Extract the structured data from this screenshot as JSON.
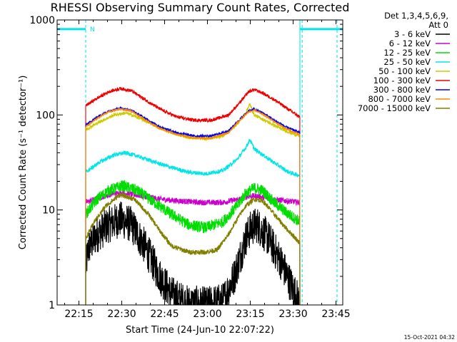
{
  "chart_data": {
    "type": "line",
    "title": "RHESSI Observing Summary Count Rates, Corrected",
    "xlabel": "Start Time (24-Jun-10 22:07:22)",
    "ylabel": "Corrected Count Rate (s⁻¹ detector⁻¹)",
    "y_scale": "log",
    "ylim": [
      1,
      1000
    ],
    "xlim_minutes": [
      0,
      100
    ],
    "x_ticks": [
      {
        "label": "22:15",
        "minute": 7.63
      },
      {
        "label": "22:30",
        "minute": 22.63
      },
      {
        "label": "22:45",
        "minute": 37.63
      },
      {
        "label": "23:00",
        "minute": 52.63
      },
      {
        "label": "23:15",
        "minute": 67.63
      },
      {
        "label": "23:30",
        "minute": 82.63
      },
      {
        "label": "23:45",
        "minute": 97.63
      }
    ],
    "y_ticks": [
      {
        "label": "1",
        "value": 1
      },
      {
        "label": "10",
        "value": 10
      },
      {
        "label": "100",
        "value": 100
      },
      {
        "label": "1000",
        "value": 1000
      }
    ],
    "legend_header": [
      "Det 1,3,4,5,6,9,",
      "Att 0"
    ],
    "night_marker": "N",
    "timestamp": "15-Oct-2021 04:32",
    "series": [
      {
        "name": "3 - 6 keV",
        "color": "#000000",
        "noise": 0.45,
        "x": [
          10,
          11,
          14,
          18,
          22,
          26,
          30,
          36,
          40,
          45,
          52,
          58,
          62,
          66,
          68,
          70,
          74,
          78,
          82,
          84,
          85
        ],
        "y": [
          2.5,
          4,
          5.5,
          7,
          8,
          7,
          4.5,
          2,
          1.3,
          1.05,
          1,
          1.1,
          2,
          5,
          6.5,
          7,
          5,
          3,
          1.6,
          1.2,
          1
        ]
      },
      {
        "name": "6 - 12 keV",
        "color": "#cc00cc",
        "noise": 0.07,
        "x": [
          10,
          15,
          20,
          24,
          30,
          36,
          42,
          50,
          58,
          64,
          67,
          70,
          75,
          80,
          85
        ],
        "y": [
          12,
          13.5,
          15,
          15,
          14,
          13,
          12.5,
          12,
          12,
          13,
          14,
          14,
          13,
          12.5,
          12
        ]
      },
      {
        "name": "12 - 25 keV",
        "color": "#00dd00",
        "noise": 0.14,
        "x": [
          10,
          14,
          18,
          23,
          28,
          34,
          40,
          46,
          52,
          58,
          63,
          66,
          69,
          72,
          76,
          80,
          85
        ],
        "y": [
          9,
          13,
          16,
          18,
          16,
          12,
          9,
          7,
          6.5,
          7.5,
          11,
          15,
          17,
          16,
          12,
          9.5,
          7.5
        ]
      },
      {
        "name": "25 - 50 keV",
        "color": "#00e5e5",
        "noise": 0.05,
        "x": [
          10,
          15,
          20,
          24,
          28,
          34,
          40,
          46,
          52,
          58,
          63,
          66,
          67.5,
          69,
          72,
          77,
          81,
          85
        ],
        "y": [
          25,
          32,
          38,
          40,
          37,
          32,
          28,
          25,
          24,
          26,
          34,
          45,
          55,
          44,
          38,
          30,
          25,
          23
        ]
      },
      {
        "name": "50 - 100 keV",
        "color": "#cccc00",
        "noise": 0.04,
        "x": [
          10,
          15,
          20,
          24,
          28,
          34,
          40,
          46,
          52,
          58,
          63,
          66,
          67.5,
          69,
          72,
          77,
          81,
          85
        ],
        "y": [
          70,
          85,
          100,
          105,
          95,
          78,
          65,
          58,
          56,
          60,
          80,
          105,
          130,
          100,
          90,
          75,
          66,
          60
        ]
      },
      {
        "name": "100 - 300 keV",
        "color": "#ee0000",
        "noise": 0.04,
        "x": [
          10,
          14,
          18,
          22,
          26,
          30,
          36,
          42,
          48,
          54,
          60,
          64,
          67,
          69,
          72,
          76,
          80,
          85
        ],
        "y": [
          125,
          150,
          175,
          190,
          180,
          150,
          115,
          95,
          88,
          88,
          100,
          135,
          175,
          185,
          170,
          145,
          120,
          95
        ]
      },
      {
        "name": "300 - 800 keV",
        "color": "#0000ee",
        "noise": 0.03,
        "x": [
          10,
          14,
          18,
          22,
          26,
          30,
          36,
          42,
          48,
          54,
          60,
          64,
          67,
          69,
          72,
          76,
          80,
          85
        ],
        "y": [
          78,
          95,
          110,
          118,
          112,
          95,
          75,
          65,
          60,
          60,
          68,
          90,
          110,
          115,
          105,
          88,
          75,
          65
        ]
      },
      {
        "name": "800 - 7000 keV",
        "color": "#ff8800",
        "noise": 0.02,
        "x": [
          10,
          14,
          18,
          22,
          26,
          30,
          36,
          42,
          48,
          54,
          60,
          64,
          67,
          69,
          72,
          76,
          80,
          85
        ],
        "y": [
          75,
          92,
          108,
          115,
          110,
          92,
          72,
          62,
          57,
          57,
          65,
          88,
          108,
          112,
          102,
          85,
          72,
          62
        ]
      },
      {
        "name": "7000 - 15000 keV",
        "color": "#808000",
        "noise": 0.06,
        "x": [
          10,
          13,
          17,
          22,
          27,
          32,
          36,
          40,
          46,
          52,
          56,
          60,
          63,
          66,
          69,
          72,
          76,
          80,
          85
        ],
        "y": [
          5,
          7.5,
          11,
          14.5,
          13,
          9,
          6,
          4.2,
          3.6,
          3.6,
          3.8,
          5.5,
          8,
          11,
          13,
          12.5,
          9,
          6.5,
          4.5
        ]
      }
    ]
  },
  "night_bars": [
    {
      "start_minute": 0,
      "end_minute": 10,
      "value": 800
    },
    {
      "start_minute": 85,
      "end_minute": 100,
      "value": 800
    }
  ],
  "vertical_lines": [
    {
      "minute": 0,
      "style": "solid"
    },
    {
      "minute": 10,
      "style": "dashed"
    },
    {
      "minute": 85,
      "style": "solid"
    },
    {
      "minute": 85.8,
      "style": "dashed"
    },
    {
      "minute": 98,
      "style": "dashed"
    }
  ],
  "colors": {
    "frame": "#000000",
    "night": "#00e5e5",
    "background": "#ffffff"
  }
}
